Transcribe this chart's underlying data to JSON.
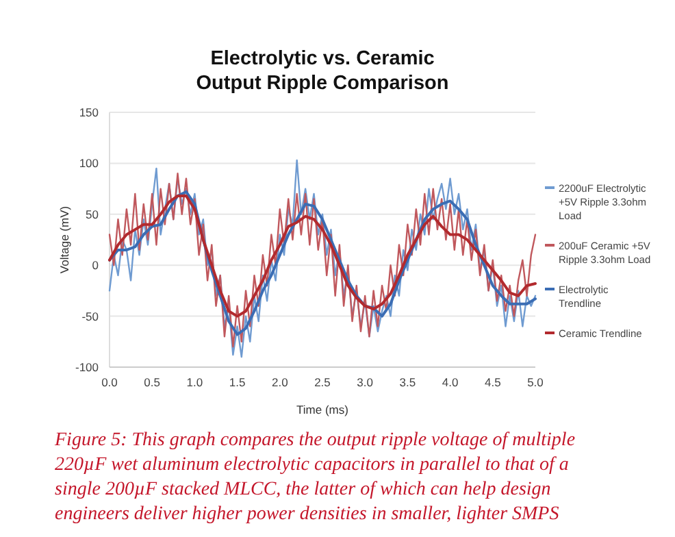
{
  "chart_data": {
    "type": "line",
    "title": "Electrolytic vs. Ceramic\nOutput Ripple Comparison",
    "xlabel": "Time (ms)",
    "ylabel": "Voltage (mV)",
    "xlim": [
      0,
      5
    ],
    "xticks": [
      {
        "value": 0,
        "label": "0.0"
      },
      {
        "value": 0.5,
        "label": "0.5"
      },
      {
        "value": 1,
        "label": "1.0"
      },
      {
        "value": 1.5,
        "label": "1.5"
      },
      {
        "value": 2,
        "label": "2.0"
      },
      {
        "value": 2.5,
        "label": "2.5"
      },
      {
        "value": 3,
        "label": "3.0"
      },
      {
        "value": 3.5,
        "label": "3.5"
      },
      {
        "value": 4,
        "label": "4.0"
      },
      {
        "value": 4.5,
        "label": "4.5"
      },
      {
        "value": 5,
        "label": "5.0"
      }
    ],
    "ylim": [
      -100,
      150
    ],
    "yticks": [
      -100,
      -50,
      0,
      50,
      100,
      150
    ],
    "grid": "y",
    "legend": "right",
    "series": [
      {
        "name": "2200uF Electrolytic +5V Ripple 3.3ohm Load",
        "color": "#6f9bd1",
        "x": [
          0,
          0.05,
          0.1,
          0.15,
          0.2,
          0.25,
          0.3,
          0.35,
          0.4,
          0.45,
          0.5,
          0.55,
          0.6,
          0.65,
          0.7,
          0.75,
          0.8,
          0.85,
          0.9,
          0.95,
          1,
          1.05,
          1.1,
          1.15,
          1.2,
          1.25,
          1.3,
          1.35,
          1.4,
          1.45,
          1.5,
          1.55,
          1.6,
          1.65,
          1.7,
          1.75,
          1.8,
          1.85,
          1.9,
          1.95,
          2,
          2.05,
          2.1,
          2.15,
          2.2,
          2.25,
          2.3,
          2.35,
          2.4,
          2.45,
          2.5,
          2.55,
          2.6,
          2.65,
          2.7,
          2.75,
          2.8,
          2.85,
          2.9,
          2.95,
          3,
          3.05,
          3.1,
          3.15,
          3.2,
          3.25,
          3.3,
          3.35,
          3.4,
          3.45,
          3.5,
          3.55,
          3.6,
          3.65,
          3.7,
          3.75,
          3.8,
          3.85,
          3.9,
          3.95,
          4,
          4.05,
          4.1,
          4.15,
          4.2,
          4.25,
          4.3,
          4.35,
          4.4,
          4.45,
          4.5,
          4.55,
          4.6,
          4.65,
          4.7,
          4.75,
          4.8,
          4.85,
          4.9,
          4.95,
          5
        ],
        "values": [
          -25,
          10,
          -10,
          25,
          15,
          -15,
          35,
          10,
          45,
          20,
          60,
          95,
          30,
          55,
          80,
          45,
          85,
          60,
          75,
          50,
          70,
          30,
          45,
          0,
          15,
          -30,
          -10,
          -60,
          -40,
          -88,
          -60,
          -90,
          -50,
          -75,
          -30,
          -55,
          -10,
          -35,
          5,
          -15,
          30,
          10,
          55,
          40,
          103,
          50,
          75,
          45,
          70,
          30,
          50,
          10,
          35,
          -10,
          15,
          -30,
          -5,
          -50,
          -25,
          -60,
          -35,
          -70,
          -40,
          -65,
          -45,
          -30,
          -50,
          -10,
          -30,
          15,
          -5,
          35,
          15,
          50,
          30,
          75,
          45,
          65,
          80,
          55,
          85,
          50,
          70,
          35,
          55,
          15,
          40,
          -5,
          15,
          -25,
          0,
          -40,
          -20,
          -60,
          -30,
          -55,
          -25,
          -60,
          -30,
          -40,
          -30
        ]
      },
      {
        "name": "200uF Ceramic +5V Ripple 3.3ohm Load",
        "color": "#c0585d",
        "x": [
          0,
          0.05,
          0.1,
          0.15,
          0.2,
          0.25,
          0.3,
          0.35,
          0.4,
          0.45,
          0.5,
          0.55,
          0.6,
          0.65,
          0.7,
          0.75,
          0.8,
          0.85,
          0.9,
          0.95,
          1,
          1.05,
          1.1,
          1.15,
          1.2,
          1.25,
          1.3,
          1.35,
          1.4,
          1.45,
          1.5,
          1.55,
          1.6,
          1.65,
          1.7,
          1.75,
          1.8,
          1.85,
          1.9,
          1.95,
          2,
          2.05,
          2.1,
          2.15,
          2.2,
          2.25,
          2.3,
          2.35,
          2.4,
          2.45,
          2.5,
          2.55,
          2.6,
          2.65,
          2.7,
          2.75,
          2.8,
          2.85,
          2.9,
          2.95,
          3,
          3.05,
          3.1,
          3.15,
          3.2,
          3.25,
          3.3,
          3.35,
          3.4,
          3.45,
          3.5,
          3.55,
          3.6,
          3.65,
          3.7,
          3.75,
          3.8,
          3.85,
          3.9,
          3.95,
          4,
          4.05,
          4.1,
          4.15,
          4.2,
          4.25,
          4.3,
          4.35,
          4.4,
          4.45,
          4.5,
          4.55,
          4.6,
          4.65,
          4.7,
          4.75,
          4.8,
          4.85,
          4.9,
          4.95,
          5
        ],
        "values": [
          30,
          0,
          45,
          10,
          55,
          20,
          70,
          15,
          60,
          25,
          70,
          20,
          75,
          40,
          80,
          45,
          90,
          50,
          85,
          40,
          65,
          10,
          40,
          -15,
          20,
          -40,
          -10,
          -70,
          -30,
          -80,
          -40,
          -75,
          -25,
          -60,
          -10,
          -40,
          10,
          -20,
          30,
          0,
          55,
          20,
          65,
          25,
          70,
          30,
          70,
          20,
          65,
          15,
          45,
          -10,
          30,
          -30,
          20,
          -40,
          0,
          -55,
          -20,
          -65,
          -30,
          -70,
          -25,
          -60,
          -20,
          -45,
          0,
          -30,
          20,
          -10,
          40,
          10,
          55,
          20,
          70,
          30,
          75,
          35,
          65,
          25,
          60,
          15,
          55,
          10,
          45,
          5,
          35,
          -10,
          20,
          -25,
          5,
          -35,
          -10,
          -45,
          -20,
          -50,
          -15,
          5,
          -30,
          10,
          30
        ]
      },
      {
        "name": "Electrolytic Trendline",
        "color": "#3b6db4",
        "x": [
          0,
          0.1,
          0.2,
          0.3,
          0.4,
          0.5,
          0.6,
          0.7,
          0.8,
          0.9,
          1,
          1.1,
          1.2,
          1.3,
          1.4,
          1.5,
          1.6,
          1.7,
          1.8,
          1.9,
          2,
          2.1,
          2.2,
          2.3,
          2.4,
          2.5,
          2.6,
          2.7,
          2.8,
          2.9,
          3,
          3.1,
          3.2,
          3.3,
          3.4,
          3.5,
          3.6,
          3.7,
          3.8,
          3.9,
          4,
          4.1,
          4.2,
          4.3,
          4.4,
          4.5,
          4.6,
          4.7,
          4.8,
          4.9,
          5
        ],
        "values": [
          5,
          15,
          15,
          18,
          30,
          38,
          40,
          55,
          68,
          72,
          60,
          25,
          -5,
          -30,
          -55,
          -68,
          -62,
          -45,
          -25,
          -10,
          10,
          30,
          45,
          60,
          58,
          45,
          25,
          5,
          -15,
          -30,
          -40,
          -42,
          -50,
          -38,
          -15,
          5,
          25,
          45,
          55,
          60,
          63,
          55,
          45,
          20,
          0,
          -20,
          -30,
          -38,
          -38,
          -38,
          -33
        ]
      },
      {
        "name": "Ceramic Trendline",
        "color": "#b22a2e",
        "x": [
          0,
          0.1,
          0.2,
          0.3,
          0.4,
          0.5,
          0.6,
          0.7,
          0.8,
          0.9,
          1,
          1.1,
          1.2,
          1.3,
          1.4,
          1.5,
          1.6,
          1.7,
          1.8,
          1.9,
          2,
          2.1,
          2.2,
          2.3,
          2.4,
          2.5,
          2.6,
          2.7,
          2.8,
          2.9,
          3,
          3.1,
          3.2,
          3.3,
          3.4,
          3.5,
          3.6,
          3.7,
          3.8,
          3.9,
          4,
          4.1,
          4.2,
          4.3,
          4.4,
          4.5,
          4.6,
          4.7,
          4.8,
          4.9,
          5
        ],
        "values": [
          5,
          20,
          30,
          35,
          40,
          40,
          50,
          62,
          68,
          68,
          55,
          25,
          0,
          -25,
          -45,
          -50,
          -45,
          -30,
          -15,
          5,
          20,
          38,
          42,
          48,
          45,
          35,
          20,
          0,
          -20,
          -32,
          -40,
          -43,
          -38,
          -28,
          -10,
          10,
          25,
          40,
          48,
          38,
          30,
          30,
          25,
          15,
          5,
          -5,
          -15,
          -27,
          -30,
          -20,
          -18
        ]
      }
    ],
    "annotations": [
      "Figure 5: This graph compares the output ripple voltage of multiple 220µF wet aluminum electrolytic capacitors in parallel to that of a single 200µF stacked MLCC, the latter of which can help design engineers deliver higher power densities in smaller, lighter SMPS"
    ]
  }
}
